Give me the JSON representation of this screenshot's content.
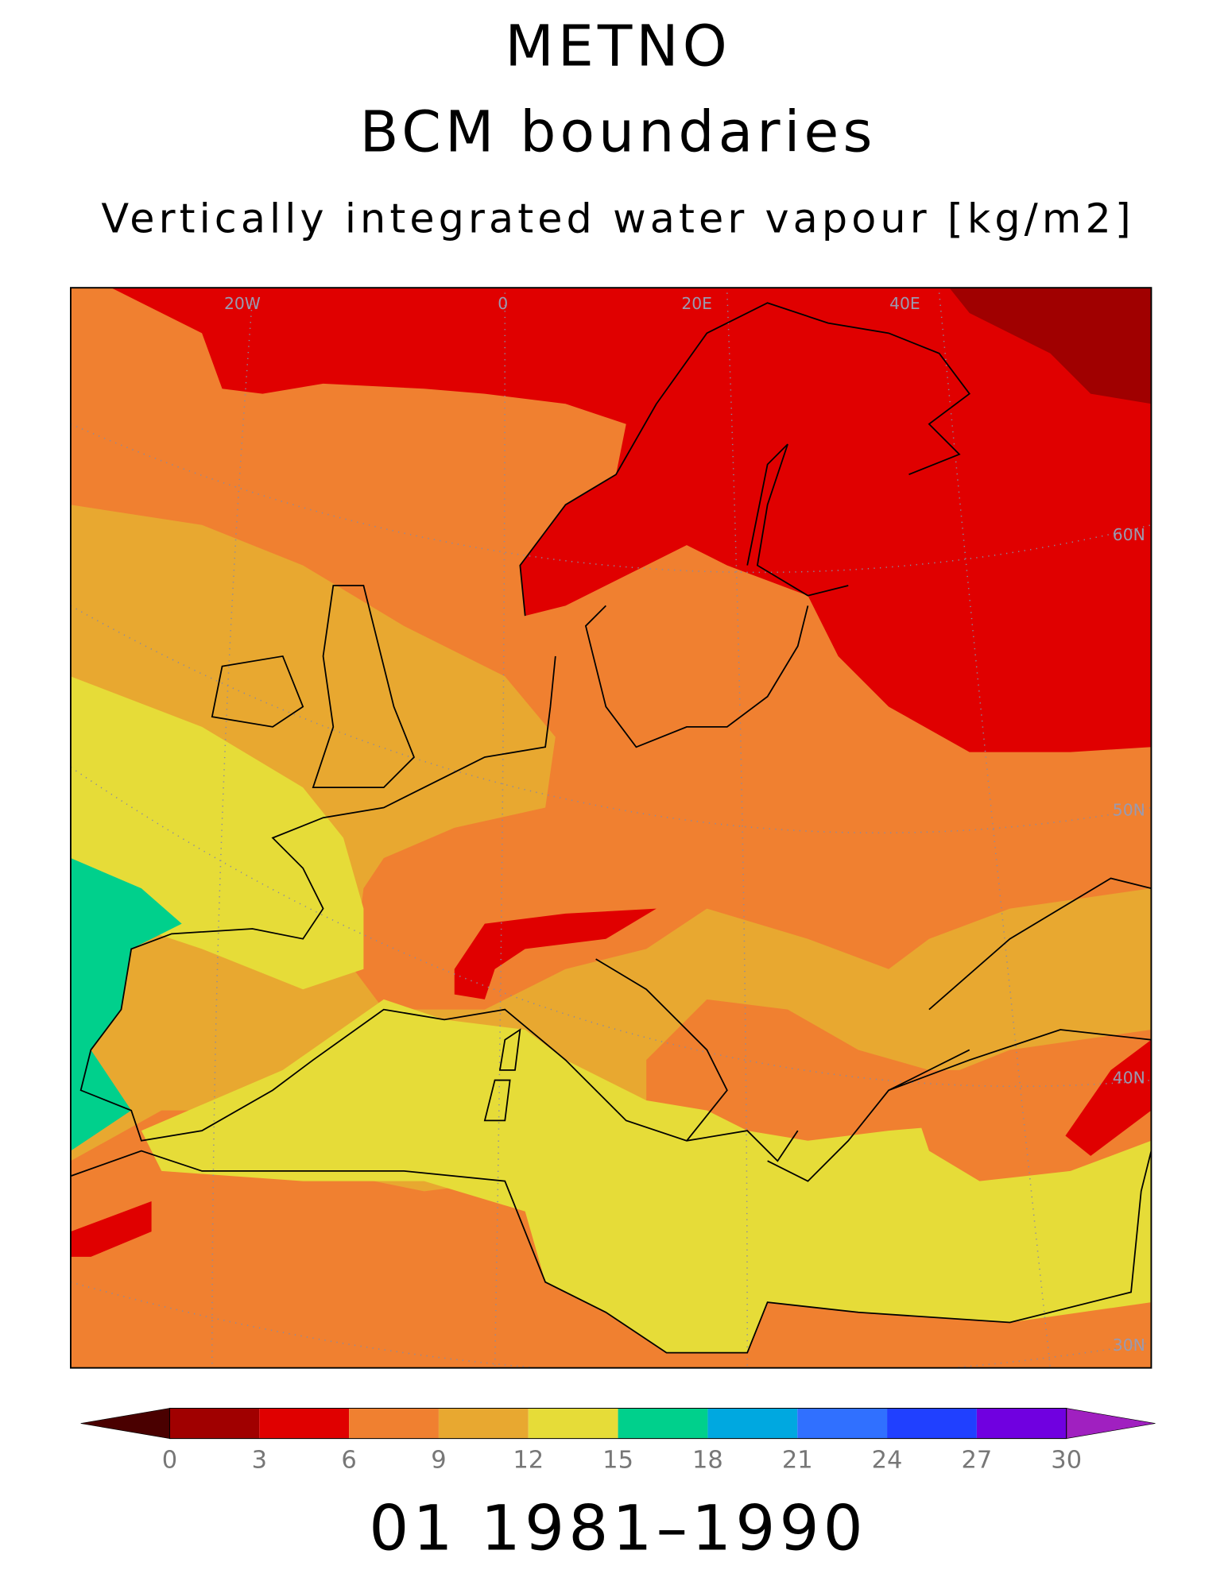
{
  "title": "METNO",
  "subtitle": "BCM boundaries",
  "variable": "Vertically integrated water vapour [kg/m2]",
  "map": {
    "lon_labels": [
      "20W",
      "0",
      "20E",
      "40E"
    ],
    "lat_labels": [
      "60N",
      "50N",
      "40N",
      "30N"
    ]
  },
  "colorbar": {
    "ticks": [
      0,
      3,
      6,
      9,
      12,
      15,
      18,
      21,
      24,
      27,
      30
    ],
    "colors": [
      "#4a0000",
      "#a00000",
      "#e00000",
      "#f08030",
      "#e8a830",
      "#e6dc38",
      "#00d08c",
      "#00a8e0",
      "#3070ff",
      "#2040ff",
      "#7000e0",
      "#a020c0"
    ]
  },
  "footer": "01 1981–1990"
}
